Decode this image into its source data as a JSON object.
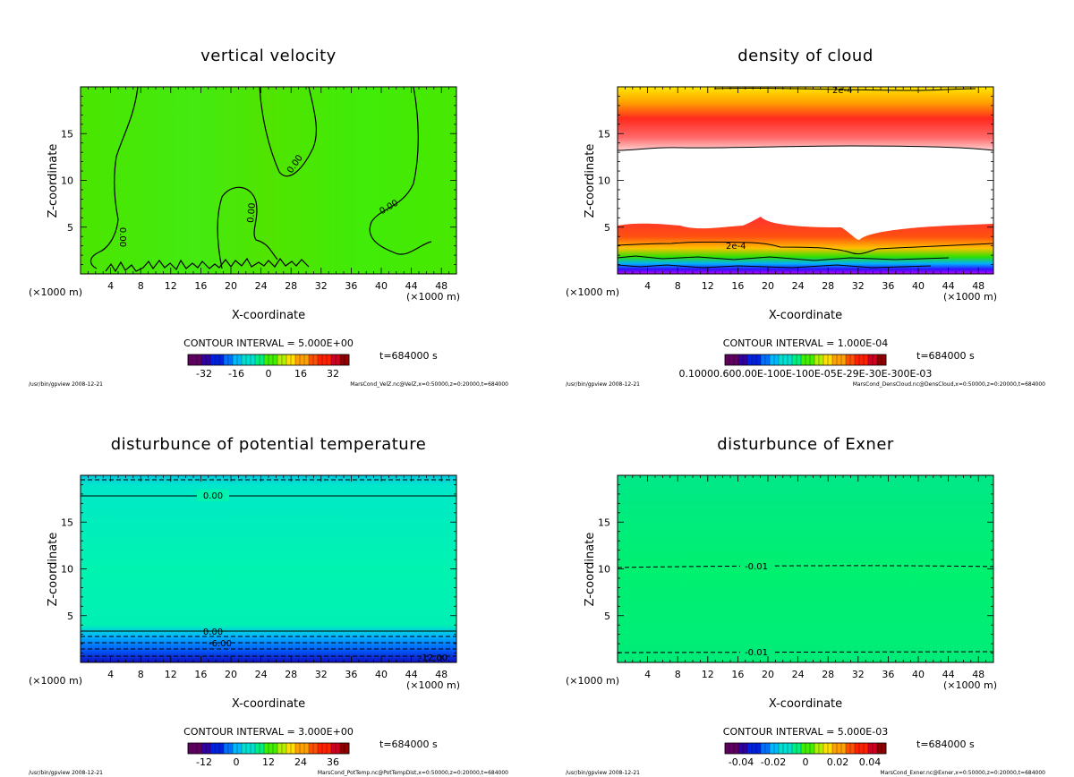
{
  "chart_data": [
    {
      "type": "heatmap",
      "title": "vertical velocity",
      "xlabel": "X-coordinate",
      "ylabel": "Z-coordinate",
      "x_unit": "(×1000 m)",
      "x_ticks": [
        "4",
        "8",
        "12",
        "16",
        "20",
        "24",
        "28",
        "32",
        "36",
        "40",
        "44",
        "48"
      ],
      "y_ticks": [
        "5",
        "10",
        "15"
      ],
      "xlim": [
        0,
        50
      ],
      "ylim": [
        0,
        20
      ],
      "contour_labels": [
        "0.00",
        "0.00",
        "0.00",
        "0.00"
      ],
      "contour_interval": "CONTOUR INTERVAL = 5.000E+00",
      "colorbar_ticks": [
        "-32",
        "-16",
        "0",
        "16",
        "32"
      ],
      "colorbar_range": [
        -40,
        40
      ],
      "time": "t=684000 s",
      "footer_left": "/usr/bin/gpview  2008-12-21",
      "footer_right": "MarsCond_VelZ.nc@VelZ,x=0:50000,z=0:20000,t=684000",
      "fill_color": "#44e800"
    },
    {
      "type": "heatmap",
      "title": "density of cloud",
      "xlabel": "X-coordinate",
      "ylabel": "Z-coordinate",
      "x_unit": "(×1000 m)",
      "x_ticks": [
        "4",
        "8",
        "12",
        "16",
        "20",
        "24",
        "28",
        "32",
        "36",
        "40",
        "44",
        "48"
      ],
      "y_ticks": [
        "5",
        "10",
        "15"
      ],
      "xlim": [
        0,
        50
      ],
      "ylim": [
        0,
        20
      ],
      "contour_labels": [
        "2e-4",
        "2e-4"
      ],
      "contour_interval": "CONTOUR INTERVAL = 1.000E-04",
      "colorbar_ticks_overlapped": "0.10000.600.00E-100E-100E-05E-29E-30E-300E-03",
      "time": "t=684000 s",
      "footer_left": "/usr/bin/gpview  2008-12-21",
      "footer_right": "MarsCond_DensCloud.nc@DensCloud,x=0:50000,z=0:20000,t=684000"
    },
    {
      "type": "heatmap",
      "title": "disturbunce of potential temperature",
      "xlabel": "X-coordinate",
      "ylabel": "Z-coordinate",
      "x_unit": "(×1000 m)",
      "x_ticks": [
        "4",
        "8",
        "12",
        "16",
        "20",
        "24",
        "28",
        "32",
        "36",
        "40",
        "44",
        "48"
      ],
      "y_ticks": [
        "5",
        "10",
        "15"
      ],
      "xlim": [
        0,
        50
      ],
      "ylim": [
        0,
        20
      ],
      "contour_labels": [
        "0.00",
        "0.00",
        "-6.00",
        "-12.00"
      ],
      "contour_interval": "CONTOUR INTERVAL = 3.000E+00",
      "colorbar_ticks": [
        "-12",
        "0",
        "12",
        "24",
        "36"
      ],
      "colorbar_range": [
        -18,
        42
      ],
      "time": "t=684000 s",
      "footer_left": "/usr/bin/gpview  2008-12-21",
      "footer_right": "MarsCond_PotTemp.nc@PotTempDist,x=0:50000,z=0:20000,t=684000",
      "fill_color": "#00f0a8"
    },
    {
      "type": "heatmap",
      "title": "disturbunce of Exner",
      "xlabel": "X-coordinate",
      "ylabel": "Z-coordinate",
      "x_unit": "(×1000 m)",
      "x_ticks": [
        "4",
        "8",
        "12",
        "16",
        "20",
        "24",
        "28",
        "32",
        "36",
        "40",
        "44",
        "48"
      ],
      "y_ticks": [
        "5",
        "10",
        "15"
      ],
      "xlim": [
        0,
        50
      ],
      "ylim": [
        0,
        20
      ],
      "contour_labels": [
        "-0.01",
        "-0.01"
      ],
      "contour_interval": "CONTOUR INTERVAL = 5.000E-03",
      "colorbar_ticks": [
        "-0.04",
        "-0.02",
        "0",
        "0.02",
        "0.04"
      ],
      "colorbar_range": [
        -0.05,
        0.05
      ],
      "time": "t=684000 s",
      "footer_left": "/usr/bin/gpview  2008-12-21",
      "footer_right": "MarsCond_Exner.nc@Exner,x=0:50000,z=0:20000,t=684000",
      "fill_color": "#00ee70"
    }
  ]
}
